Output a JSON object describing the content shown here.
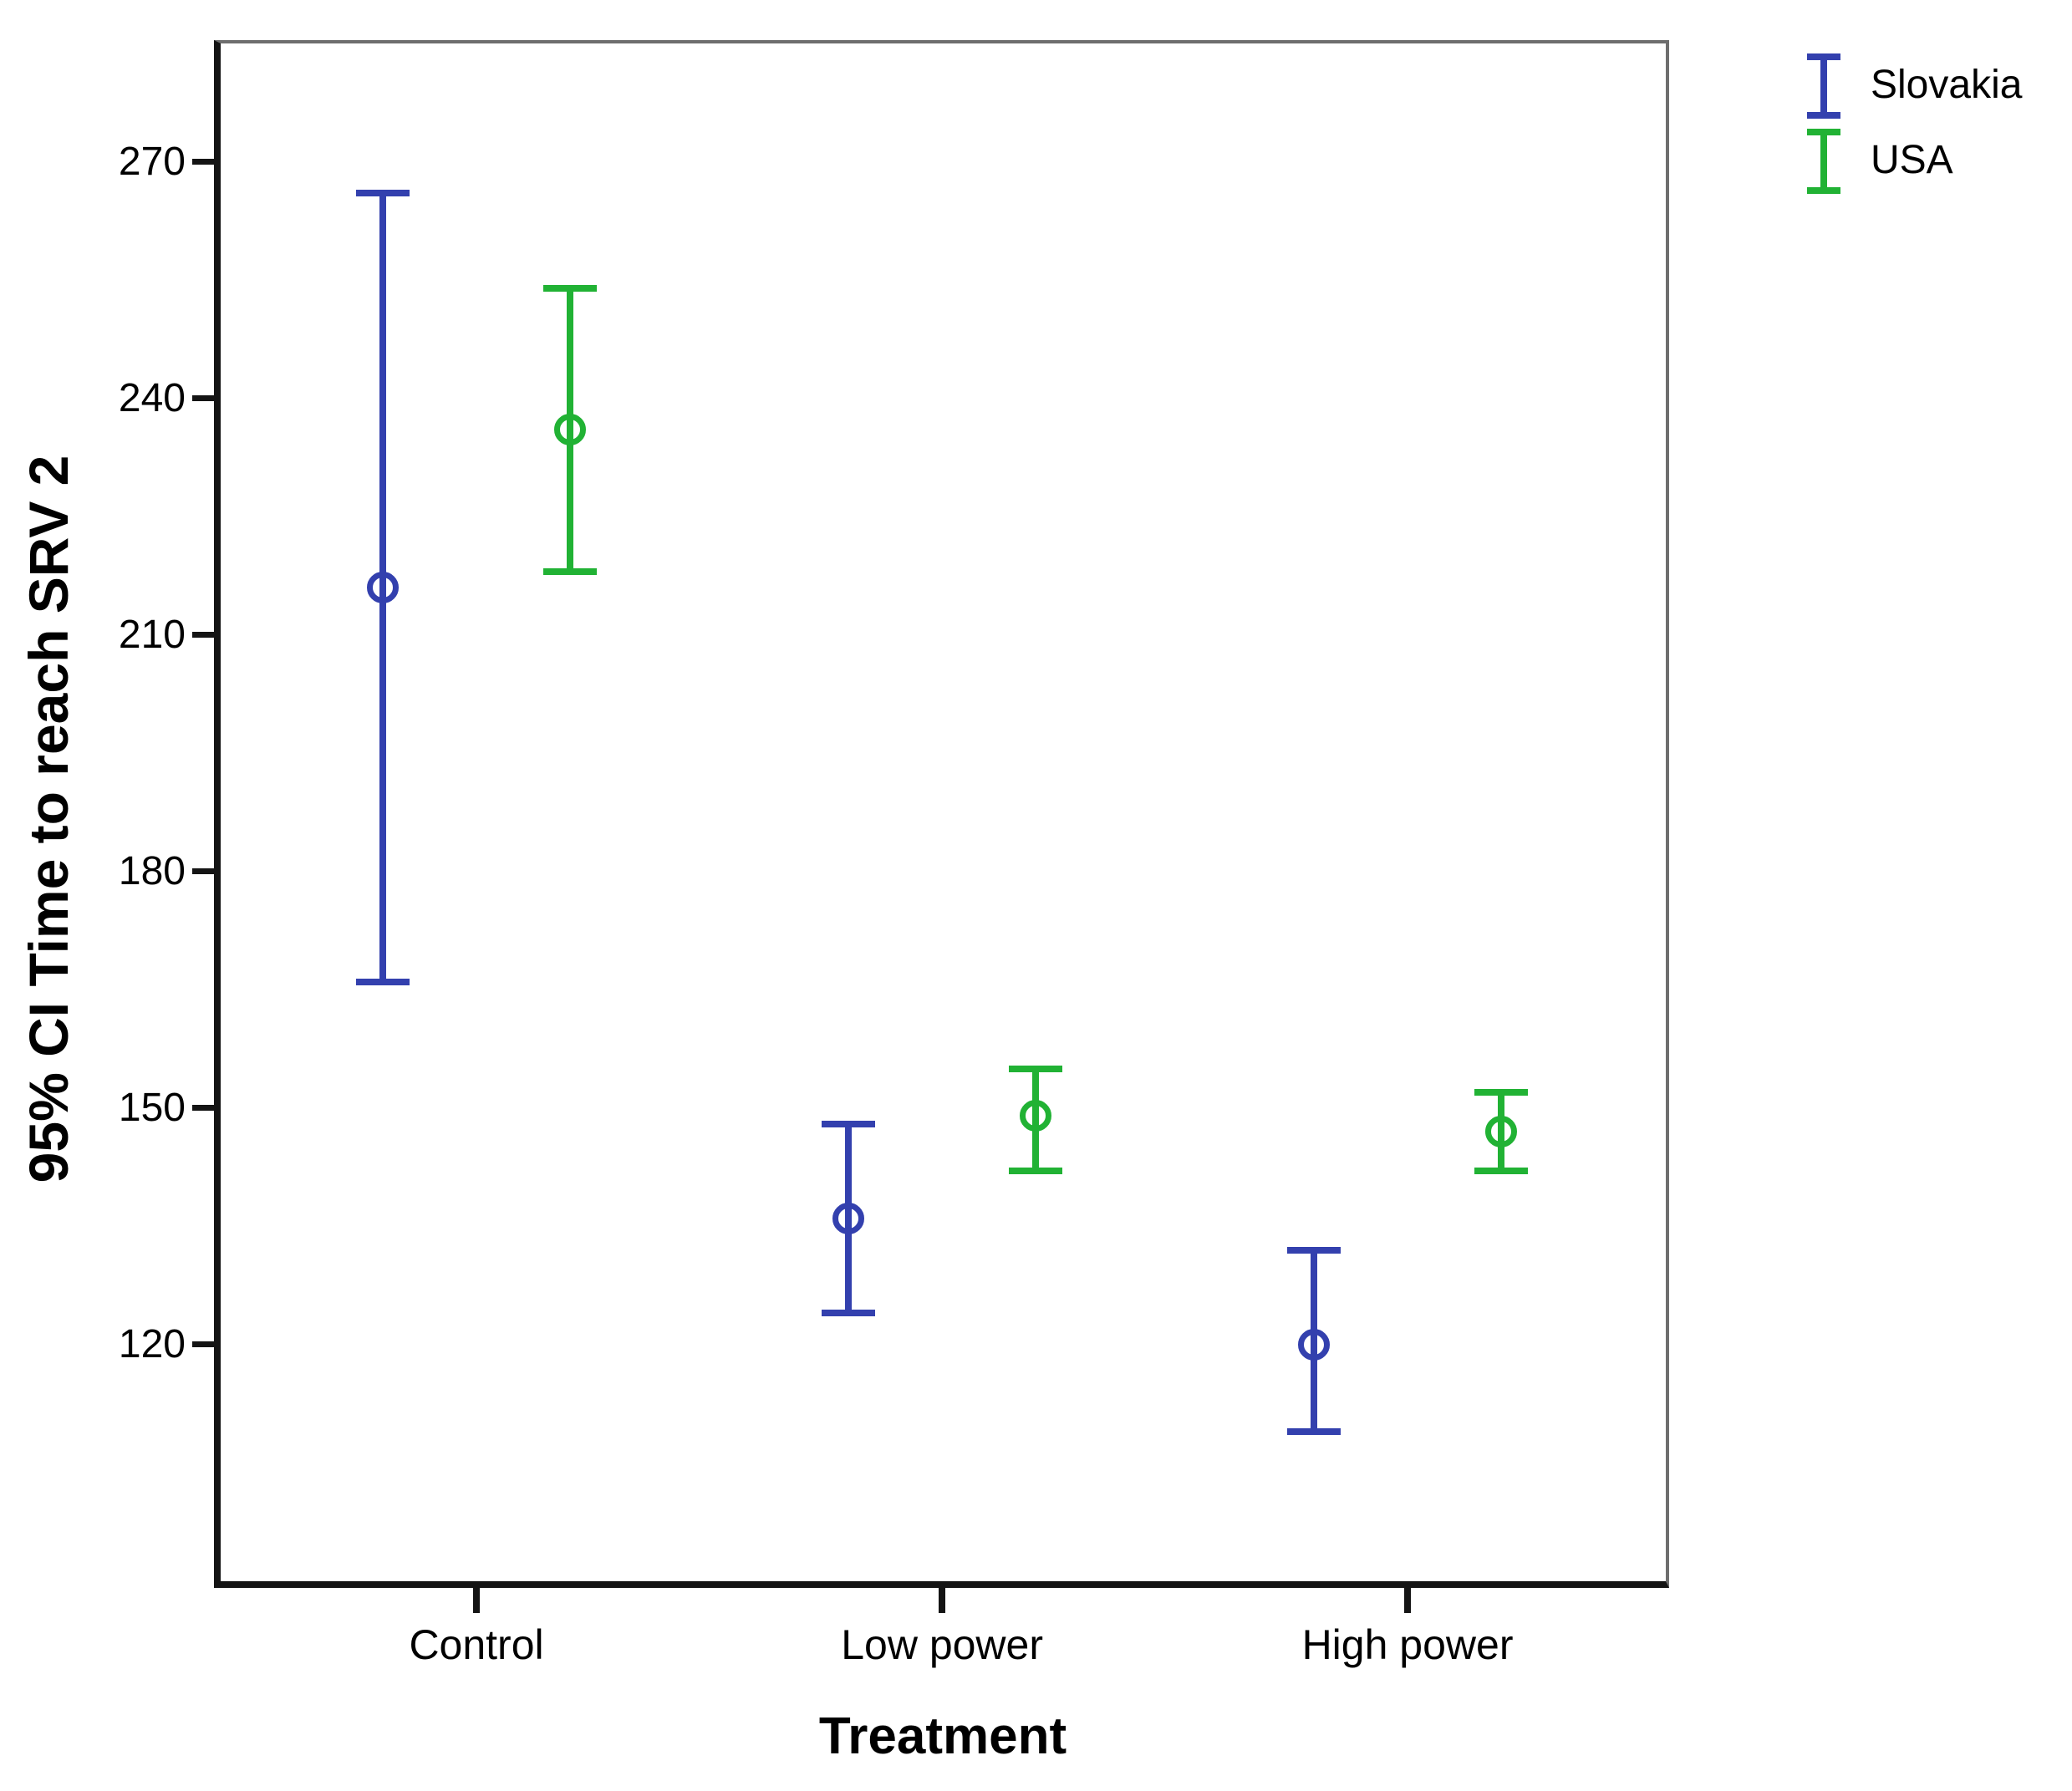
{
  "chart_data": {
    "type": "errorbar",
    "title": "",
    "xlabel": "Treatment",
    "ylabel": "95% CI Time to reach SRV 2",
    "categories": [
      "Control",
      "Low power",
      "High power"
    ],
    "y_ticks": [
      270,
      240,
      210,
      180,
      150,
      120
    ],
    "ylim": [
      90,
      285
    ],
    "grid": false,
    "marker": "open-circle",
    "legend": {
      "position": "top-right-outside",
      "entries": [
        {
          "label": "Slovakia",
          "color": "#3340AE"
        },
        {
          "label": "USA",
          "color": "#21B234"
        }
      ]
    },
    "series": [
      {
        "name": "Slovakia",
        "color": "#3340AE",
        "points": [
          {
            "category": "Control",
            "mean": 216,
            "ci_low": 166,
            "ci_high": 266
          },
          {
            "category": "Low power",
            "mean": 136,
            "ci_low": 124,
            "ci_high": 148
          },
          {
            "category": "High power",
            "mean": 120,
            "ci_low": 109,
            "ci_high": 132
          }
        ]
      },
      {
        "name": "USA",
        "color": "#21B234",
        "points": [
          {
            "category": "Control",
            "mean": 236,
            "ci_low": 218,
            "ci_high": 254
          },
          {
            "category": "Low power",
            "mean": 149,
            "ci_low": 142,
            "ci_high": 155
          },
          {
            "category": "High power",
            "mean": 147,
            "ci_low": 142,
            "ci_high": 152
          }
        ]
      }
    ],
    "layout": {
      "group_centers_frac": [
        0.177,
        0.4992,
        0.8213
      ],
      "dodge_frac": 0.0648,
      "axis_color": "#141414",
      "frame_color": "#6e6e6e",
      "background": "#ffffff"
    }
  }
}
